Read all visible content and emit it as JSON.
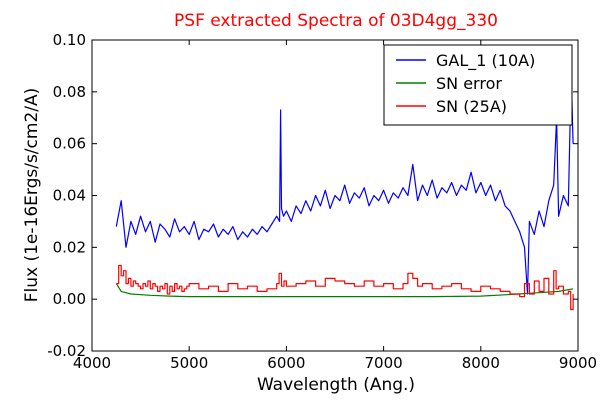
{
  "chart_data": {
    "type": "line",
    "title": "PSF extracted Spectra of 03D4gg_330",
    "xlabel": "Wavelength (Ang.)",
    "ylabel": "Flux (1e-16Ergs/s/cm2/A)",
    "xlim": [
      4000,
      9000
    ],
    "ylim": [
      -0.02,
      0.1
    ],
    "x_ticks": [
      "4000",
      "5000",
      "6000",
      "7000",
      "8000",
      "9000"
    ],
    "y_ticks": [
      "-0.02",
      "0.00",
      "0.02",
      "0.04",
      "0.06",
      "0.08",
      "0.10"
    ],
    "grid": false,
    "legend_position": "top-right",
    "series": [
      {
        "name": "GAL_1 (10A)",
        "color": "#0000ff",
        "style": "line",
        "x": [
          4250,
          4300,
          4350,
          4400,
          4450,
          4500,
          4550,
          4600,
          4650,
          4700,
          4750,
          4800,
          4850,
          4900,
          4950,
          5000,
          5050,
          5100,
          5150,
          5200,
          5250,
          5300,
          5350,
          5400,
          5450,
          5500,
          5550,
          5600,
          5650,
          5700,
          5750,
          5800,
          5850,
          5900,
          5930,
          5940,
          5950,
          5970,
          6000,
          6050,
          6100,
          6150,
          6200,
          6250,
          6300,
          6350,
          6400,
          6450,
          6500,
          6550,
          6600,
          6650,
          6700,
          6750,
          6800,
          6850,
          6900,
          6950,
          7000,
          7050,
          7100,
          7150,
          7200,
          7250,
          7300,
          7350,
          7400,
          7450,
          7500,
          7550,
          7600,
          7650,
          7700,
          7750,
          7800,
          7850,
          7900,
          7950,
          8000,
          8050,
          8100,
          8150,
          8200,
          8250,
          8300,
          8350,
          8400,
          8450,
          8480,
          8500,
          8550,
          8600,
          8650,
          8700,
          8750,
          8780,
          8800,
          8850,
          8900,
          8930,
          8950
        ],
        "y": [
          0.028,
          0.038,
          0.02,
          0.03,
          0.025,
          0.032,
          0.026,
          0.03,
          0.022,
          0.029,
          0.027,
          0.024,
          0.031,
          0.026,
          0.028,
          0.025,
          0.03,
          0.023,
          0.027,
          0.026,
          0.029,
          0.024,
          0.027,
          0.025,
          0.028,
          0.023,
          0.026,
          0.024,
          0.027,
          0.025,
          0.028,
          0.026,
          0.029,
          0.032,
          0.03,
          0.073,
          0.035,
          0.032,
          0.034,
          0.03,
          0.036,
          0.033,
          0.038,
          0.034,
          0.04,
          0.036,
          0.042,
          0.035,
          0.04,
          0.038,
          0.044,
          0.037,
          0.041,
          0.039,
          0.043,
          0.036,
          0.04,
          0.038,
          0.042,
          0.037,
          0.041,
          0.039,
          0.043,
          0.04,
          0.052,
          0.038,
          0.044,
          0.04,
          0.046,
          0.039,
          0.043,
          0.041,
          0.045,
          0.04,
          0.044,
          0.042,
          0.049,
          0.041,
          0.045,
          0.04,
          0.044,
          0.038,
          0.042,
          0.036,
          0.034,
          0.03,
          0.026,
          0.02,
          0.002,
          0.03,
          0.025,
          0.034,
          0.028,
          0.038,
          0.044,
          0.07,
          0.032,
          0.04,
          0.036,
          0.087,
          0.06
        ]
      },
      {
        "name": "SN error",
        "color": "#008000",
        "style": "line",
        "x": [
          4250,
          4300,
          4400,
          4600,
          4800,
          5000,
          5500,
          6000,
          6500,
          7000,
          7500,
          8000,
          8300,
          8600,
          8800,
          8950
        ],
        "y": [
          0.006,
          0.003,
          0.002,
          0.0015,
          0.0012,
          0.001,
          0.001,
          0.001,
          0.001,
          0.001,
          0.001,
          0.0012,
          0.0018,
          0.0025,
          0.003,
          0.004
        ]
      },
      {
        "name": "SN (25A)",
        "color": "#ff0000",
        "style": "step",
        "x": [
          4250,
          4275,
          4300,
          4325,
          4350,
          4375,
          4400,
          4425,
          4450,
          4475,
          4500,
          4525,
          4550,
          4575,
          4600,
          4625,
          4650,
          4675,
          4700,
          4725,
          4750,
          4775,
          4800,
          4825,
          4850,
          4875,
          4900,
          4925,
          4950,
          4975,
          5000,
          5100,
          5200,
          5300,
          5400,
          5500,
          5600,
          5700,
          5800,
          5900,
          5925,
          5950,
          5975,
          6000,
          6100,
          6200,
          6300,
          6400,
          6500,
          6600,
          6700,
          6800,
          6900,
          7000,
          7100,
          7200,
          7250,
          7300,
          7350,
          7400,
          7500,
          7600,
          7700,
          7800,
          7900,
          8000,
          8100,
          8200,
          8300,
          8400,
          8450,
          8500,
          8550,
          8600,
          8650,
          8700,
          8750,
          8775,
          8800,
          8850,
          8900,
          8925,
          8950
        ],
        "y": [
          0.006,
          0.013,
          0.009,
          0.011,
          0.006,
          0.008,
          0.005,
          0.007,
          0.006,
          0.005,
          0.004,
          0.006,
          0.005,
          0.007,
          0.004,
          0.006,
          0.005,
          0.003,
          0.005,
          0.004,
          0.006,
          0.002,
          0.005,
          0.003,
          0.006,
          0.004,
          0.005,
          0.003,
          0.004,
          0.005,
          0.006,
          0.004,
          0.005,
          0.003,
          0.006,
          0.004,
          0.005,
          0.003,
          0.004,
          0.006,
          0.01,
          0.005,
          0.007,
          0.005,
          0.006,
          0.007,
          0.005,
          0.008,
          0.007,
          0.006,
          0.005,
          0.007,
          0.005,
          0.006,
          0.004,
          0.006,
          0.01,
          0.008,
          0.005,
          0.006,
          0.004,
          0.005,
          0.006,
          0.004,
          0.003,
          0.005,
          0.004,
          0.003,
          0.002,
          0.001,
          0.006,
          0.002,
          0.007,
          0.003,
          0.008,
          0.002,
          0.011,
          0.004,
          0.005,
          0.002,
          0.003,
          -0.004,
          0.002
        ]
      }
    ]
  }
}
